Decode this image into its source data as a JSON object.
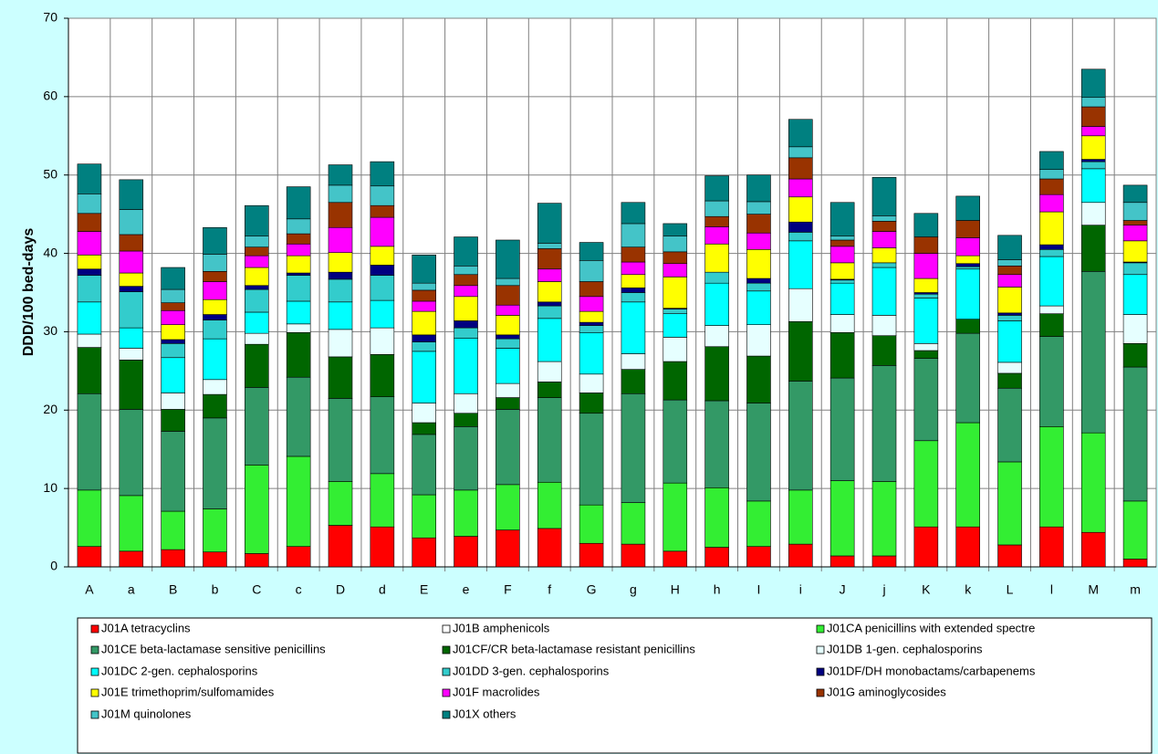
{
  "chart_data": {
    "type": "stacked_bar",
    "y_label": "DDD/100 bed-days",
    "categories": [
      "A",
      "a",
      "B",
      "b",
      "C",
      "c",
      "D",
      "d",
      "E",
      "e",
      "F",
      "f",
      "G",
      "g",
      "H",
      "h",
      "I",
      "i",
      "J",
      "j",
      "K",
      "k",
      "L",
      "l",
      "M",
      "m"
    ],
    "ylim": [
      0,
      70
    ],
    "yticks": [
      0,
      10,
      20,
      30,
      40,
      50,
      60,
      70
    ],
    "grid": true,
    "series": [
      {
        "name": "J01A tetracyclins",
        "color": "#ff0000",
        "values": [
          2.6,
          2.0,
          2.2,
          1.9,
          1.7,
          2.6,
          5.3,
          5.1,
          3.7,
          3.9,
          4.7,
          4.9,
          3.0,
          2.9,
          2.0,
          2.5,
          2.6,
          2.9,
          1.4,
          1.4,
          5.1,
          5.1,
          2.8,
          5.1,
          4.4,
          1.0
        ]
      },
      {
        "name": "J01B amphenicols",
        "color": "#ffffff",
        "values": [
          0,
          0,
          0,
          0,
          0,
          0,
          0,
          0,
          0,
          0,
          0,
          0,
          0,
          0,
          0,
          0,
          0,
          0,
          0,
          0,
          0,
          0,
          0,
          0,
          0,
          0
        ]
      },
      {
        "name": "J01CA penicillins with extended spectre",
        "color": "#33ee33",
        "values": [
          7.2,
          7.1,
          4.9,
          5.5,
          11.3,
          11.5,
          5.6,
          6.8,
          5.5,
          5.9,
          5.8,
          5.9,
          4.9,
          5.3,
          8.7,
          7.6,
          5.8,
          6.9,
          9.6,
          9.5,
          11.0,
          13.3,
          10.6,
          12.8,
          12.7,
          7.4
        ]
      },
      {
        "name": "J01CE beta-lactamase sensitive penicillins",
        "color": "#339966",
        "values": [
          12.3,
          11.0,
          10.2,
          11.6,
          9.9,
          10.1,
          10.6,
          9.8,
          7.7,
          8.1,
          9.6,
          10.8,
          11.7,
          13.9,
          10.6,
          11.1,
          12.5,
          13.9,
          13.1,
          14.8,
          10.5,
          11.4,
          9.4,
          11.5,
          20.6,
          17.1
        ]
      },
      {
        "name": "J01CF/CR beta-lactamase resistant penicillins",
        "color": "#006600",
        "values": [
          5.9,
          6.3,
          2.8,
          3.0,
          5.5,
          5.7,
          5.3,
          5.4,
          1.5,
          1.7,
          1.5,
          2.0,
          2.6,
          3.1,
          4.9,
          6.9,
          6.0,
          7.6,
          5.8,
          3.8,
          1.0,
          1.8,
          1.9,
          2.9,
          5.9,
          3.0
        ]
      },
      {
        "name": "J01DB 1-gen. cephalosporins",
        "color": "#e6ffff",
        "values": [
          1.7,
          1.5,
          2.1,
          1.9,
          1.4,
          1.1,
          3.5,
          3.4,
          2.5,
          2.5,
          1.8,
          2.6,
          2.4,
          2.0,
          3.1,
          2.7,
          4.0,
          4.2,
          2.3,
          2.6,
          0.9,
          0,
          1.4,
          1.0,
          2.9,
          3.7
        ]
      },
      {
        "name": "J01DC 2-gen. cephalosporins",
        "color": "#00ffff",
        "values": [
          4.1,
          2.6,
          4.5,
          5.2,
          2.7,
          2.9,
          3.5,
          3.5,
          6.6,
          7.1,
          4.5,
          5.5,
          5.3,
          6.6,
          3.0,
          5.4,
          4.3,
          6.1,
          4.0,
          6.1,
          5.8,
          6.4,
          5.3,
          6.3,
          4.3,
          5.1
        ]
      },
      {
        "name": "J01DD 3-gen. cephalosporins",
        "color": "#33cccc",
        "values": [
          3.4,
          4.6,
          1.8,
          2.4,
          2.9,
          3.3,
          2.9,
          3.2,
          1.2,
          1.3,
          1.2,
          1.6,
          0.9,
          1.2,
          0.6,
          1.4,
          1.0,
          1.1,
          0.4,
          0.6,
          0.5,
          0.3,
          0.7,
          0.9,
          0.9,
          1.5
        ]
      },
      {
        "name": "J01DF/DH monobactams/carbapenems",
        "color": "#000080",
        "values": [
          0.8,
          0.7,
          0.5,
          0.7,
          0.5,
          0.3,
          0.9,
          1.3,
          0.9,
          0.9,
          0.5,
          0.5,
          0.4,
          0.6,
          0.1,
          0,
          0.6,
          1.3,
          0.1,
          0,
          0.2,
          0.4,
          0.3,
          0.6,
          0.3,
          0.1
        ]
      },
      {
        "name": "J01E trimethoprim/sulfomamides",
        "color": "#ffff00",
        "values": [
          1.8,
          1.7,
          1.9,
          1.9,
          2.3,
          2.2,
          2.5,
          2.4,
          3.0,
          3.1,
          2.5,
          2.6,
          1.4,
          1.7,
          4.0,
          3.6,
          3.7,
          3.2,
          2.1,
          1.9,
          1.8,
          1.0,
          3.3,
          4.2,
          3.0,
          2.7
        ]
      },
      {
        "name": "J01F macrolides",
        "color": "#ff00ff",
        "values": [
          3.0,
          2.8,
          1.8,
          2.3,
          1.5,
          1.5,
          3.2,
          3.7,
          1.3,
          1.4,
          1.3,
          1.6,
          1.9,
          1.6,
          1.7,
          2.2,
          2.1,
          2.3,
          2.1,
          2.1,
          3.2,
          2.3,
          1.6,
          2.2,
          1.2,
          2.0
        ]
      },
      {
        "name": "J01G aminoglycosides",
        "color": "#993300",
        "values": [
          2.3,
          2.1,
          1.0,
          1.3,
          1.1,
          1.3,
          3.2,
          1.5,
          1.4,
          1.4,
          2.5,
          2.6,
          1.9,
          1.9,
          1.5,
          1.3,
          2.4,
          2.7,
          0.8,
          1.3,
          2.1,
          2.2,
          1.1,
          2.0,
          2.5,
          0.6
        ]
      },
      {
        "name": "J01M quinolones",
        "color": "#44c4c8",
        "values": [
          2.5,
          3.2,
          1.7,
          2.2,
          1.4,
          1.9,
          2.2,
          2.5,
          0.9,
          1.1,
          0.9,
          0.7,
          2.7,
          3.0,
          2.0,
          2.0,
          1.6,
          1.4,
          0.5,
          0.7,
          0,
          0,
          0.8,
          1.2,
          1.2,
          2.3
        ]
      },
      {
        "name": "J01X others",
        "color": "#008080",
        "values": [
          3.8,
          3.8,
          2.8,
          3.4,
          3.9,
          4.1,
          2.6,
          3.1,
          3.6,
          3.7,
          4.9,
          5.1,
          2.3,
          2.7,
          1.6,
          3.2,
          3.4,
          3.5,
          4.3,
          4.9,
          3.0,
          3.1,
          3.1,
          2.3,
          3.6,
          2.2
        ]
      }
    ]
  }
}
